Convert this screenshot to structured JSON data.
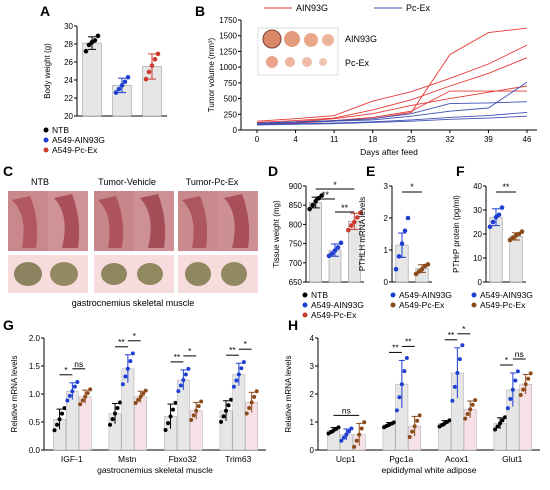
{
  "panels": {
    "A": "A",
    "B": "B",
    "C": "C",
    "D": "D",
    "E": "E",
    "F": "F",
    "G": "G",
    "H": "H"
  },
  "legend_groups": {
    "three": [
      "NTB",
      "A549-AIN93G",
      "A549-Pc-Ex"
    ],
    "two": [
      "A549-AIN93G",
      "A549-Pc-Ex"
    ]
  },
  "colors": {
    "ntb": "#000000",
    "ain": "#1f3fd0",
    "pcex": "#cc3b2f",
    "pcex_brown": "#8b4a1a",
    "bar_fill": "#e6e6e6",
    "bar_fill_pink": "#f5e1e6"
  },
  "photo_labels": {
    "c_top": [
      "NTB",
      "Tumor-Vehicle",
      "Tumor-Pc-Ex"
    ],
    "c_caption": "gastrocnemius skeletal muscle",
    "b_rows": [
      "AIN93G",
      "Pc-Ex"
    ]
  },
  "chart_data": [
    {
      "id": "A",
      "type": "bar",
      "ylabel": "Body weight (g)",
      "ylim": [
        20,
        30
      ],
      "yticks": [
        20,
        22,
        24,
        26,
        28,
        30
      ],
      "categories": [
        "NTB",
        "A549-AIN93G",
        "A549-Pc-Ex"
      ],
      "values": [
        28.1,
        23.4,
        25.5
      ],
      "errors": [
        0.7,
        0.8,
        1.4
      ],
      "points": [
        [
          27.2,
          27.9,
          28.2,
          28.4,
          28.9
        ],
        [
          22.6,
          23.0,
          23.4,
          23.8,
          24.3
        ],
        [
          24.1,
          24.9,
          25.6,
          26.3,
          26.9
        ]
      ]
    },
    {
      "id": "B",
      "type": "line",
      "xlabel": "Days after feed",
      "ylabel": "Tumor volume (mm³)",
      "xticks": [
        0,
        4,
        11,
        18,
        25,
        32,
        39,
        46
      ],
      "ylim": [
        0,
        1750
      ],
      "yticks": [
        0,
        250,
        500,
        750,
        1000,
        1250,
        1500,
        1750
      ],
      "legend": [
        "AIN93G",
        "Pc-Ex"
      ],
      "series": [
        {
          "name": "AIN93G",
          "color": "#e53935",
          "values": [
            140,
            180,
            230,
            460,
            610,
            820,
            1050,
            1350
          ]
        },
        {
          "name": "AIN93G",
          "color": "#e53935",
          "values": [
            120,
            150,
            190,
            320,
            480,
            700,
            900,
            1150
          ]
        },
        {
          "name": "AIN93G",
          "color": "#e53935",
          "values": [
            100,
            130,
            180,
            260,
            390,
            500,
            600,
            700
          ]
        },
        {
          "name": "AIN93G",
          "color": "#e53935",
          "values": [
            90,
            110,
            140,
            180,
            280,
            1200,
            1550,
            1620
          ]
        },
        {
          "name": "AIN93G",
          "color": "#e53935",
          "values": [
            80,
            110,
            150,
            200,
            300,
            620,
            620,
            620
          ]
        },
        {
          "name": "Pc-Ex",
          "color": "#3f51b5",
          "values": [
            110,
            130,
            150,
            180,
            260,
            420,
            430,
            450
          ]
        },
        {
          "name": "Pc-Ex",
          "color": "#3f51b5",
          "values": [
            100,
            120,
            140,
            160,
            220,
            300,
            350,
            760
          ]
        },
        {
          "name": "Pc-Ex",
          "color": "#3f51b5",
          "values": [
            90,
            100,
            110,
            130,
            160,
            200,
            230,
            280
          ]
        },
        {
          "name": "Pc-Ex",
          "color": "#3f51b5",
          "values": [
            80,
            90,
            100,
            120,
            140,
            170,
            190,
            220
          ]
        }
      ]
    },
    {
      "id": "D",
      "type": "bar",
      "ylabel": "Tissue weight (mg)",
      "ylim": [
        650,
        900
      ],
      "yticks": [
        650,
        700,
        750,
        800,
        850,
        900
      ],
      "categories": [
        "NTB",
        "A549-AIN93G",
        "A549-Pc-Ex"
      ],
      "values": [
        857,
        733,
        808
      ],
      "errors": [
        14,
        16,
        21
      ],
      "points": [
        [
          840,
          850,
          860,
          868,
          875
        ],
        [
          718,
          724,
          732,
          740,
          752
        ],
        [
          785,
          797,
          806,
          818,
          830
        ]
      ],
      "sig": [
        "*",
        "**",
        "**"
      ]
    },
    {
      "id": "E",
      "type": "bar",
      "ylabel": "PTHLH mRNA levels",
      "ylim": [
        0,
        3
      ],
      "yticks": [
        0,
        1,
        2,
        3
      ],
      "categories": [
        "A549-AIN93G",
        "A549-Pc-Ex"
      ],
      "values": [
        1.15,
        0.42
      ],
      "errors": [
        0.38,
        0.12
      ],
      "points": [
        [
          0.4,
          0.8,
          1.2,
          1.6,
          2.0
        ],
        [
          0.25,
          0.33,
          0.4,
          0.5,
          0.55
        ]
      ],
      "sig": [
        "*"
      ]
    },
    {
      "id": "F",
      "type": "bar",
      "ylabel": "PTHrP protein (pg/ml)",
      "ylim": [
        0,
        40
      ],
      "yticks": [
        0,
        10,
        20,
        30,
        40
      ],
      "categories": [
        "A549-AIN93G",
        "A549-Pc-Ex"
      ],
      "values": [
        27,
        19
      ],
      "errors": [
        3.5,
        1.5
      ],
      "points": [
        [
          23,
          25,
          27,
          28,
          31
        ],
        [
          17.5,
          18.5,
          19.5,
          20,
          21
        ]
      ],
      "sig": [
        "**"
      ]
    },
    {
      "id": "G",
      "type": "bar",
      "xlabel": "gastrocnemius skeletal muscle",
      "ylabel": "Relative mRNA levels",
      "ylim": [
        0,
        2.0
      ],
      "yticks": [
        0,
        0.5,
        1.0,
        1.5,
        2.0
      ],
      "categories": [
        "IGF-1",
        "Mstn",
        "Fbxo32",
        "Trim63"
      ],
      "series": [
        {
          "name": "NTB",
          "values": [
            0.55,
            0.65,
            0.6,
            0.7
          ],
          "errors": [
            0.18,
            0.18,
            0.22,
            0.18
          ]
        },
        {
          "name": "A549-AIN93G",
          "values": [
            1.05,
            1.45,
            1.25,
            1.35
          ],
          "errors": [
            0.15,
            0.25,
            0.18,
            0.2
          ]
        },
        {
          "name": "A549-Pc-Ex",
          "values": [
            0.95,
            0.95,
            0.7,
            0.85
          ],
          "errors": [
            0.12,
            0.1,
            0.15,
            0.18
          ]
        }
      ],
      "sig": [
        [
          "*",
          "ns"
        ],
        [
          "**",
          "*"
        ],
        [
          "**",
          "*"
        ],
        [
          "**",
          "*"
        ]
      ]
    },
    {
      "id": "H",
      "type": "bar",
      "xlabel": "epididymal white adipose",
      "ylabel": "Relative mRNA levels",
      "ylim": [
        0,
        4
      ],
      "yticks": [
        0,
        1,
        2,
        3,
        4
      ],
      "categories": [
        "Ucp1",
        "Pgc1a",
        "Acox1",
        "Glut1"
      ],
      "series": [
        {
          "name": "NTB",
          "values": [
            0.7,
            0.9,
            0.95,
            0.95
          ],
          "errors": [
            0.1,
            0.08,
            0.1,
            0.2
          ]
        },
        {
          "name": "A549-AIN93G",
          "values": [
            0.55,
            2.35,
            2.75,
            2.15
          ],
          "errors": [
            0.2,
            0.85,
            0.9,
            0.6
          ]
        },
        {
          "name": "A549-Pc-Ex",
          "values": [
            0.55,
            0.85,
            1.45,
            2.35
          ],
          "errors": [
            0.4,
            0.35,
            0.3,
            0.35
          ]
        }
      ],
      "sig": [
        [
          "ns"
        ],
        [
          "**",
          "**"
        ],
        [
          "**",
          "*"
        ],
        [
          "*",
          "ns"
        ]
      ]
    }
  ]
}
